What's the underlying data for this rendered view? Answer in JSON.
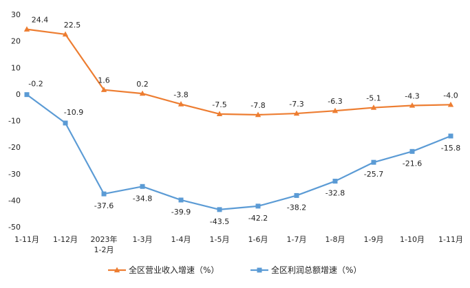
{
  "chart_data": {
    "type": "line",
    "categories": [
      "1-11月",
      "1-12月",
      "2023年\n1-2月",
      "1-3月",
      "1-4月",
      "1-5月",
      "1-6月",
      "1-7月",
      "1-8月",
      "1-9月",
      "1-10月",
      "1-11月"
    ],
    "series": [
      {
        "name": "全区营业收入增速（%）",
        "color": "#ED7D31",
        "marker": "triangle",
        "values": [
          24.4,
          22.5,
          1.6,
          0.2,
          -3.8,
          -7.5,
          -7.8,
          -7.3,
          -6.3,
          -5.1,
          -4.3,
          -4.0
        ],
        "labels": [
          "24.4",
          "22.5",
          "1.6",
          "0.2",
          "-3.8",
          "-7.5",
          "-7.8",
          "-7.3",
          "-6.3",
          "-5.1",
          "-4.3",
          "-4.0"
        ]
      },
      {
        "name": "全区利润总额增速（%）",
        "color": "#5B9BD5",
        "marker": "square",
        "values": [
          -0.2,
          -10.9,
          -37.6,
          -34.8,
          -39.9,
          -43.5,
          -42.2,
          -38.2,
          -32.8,
          -25.7,
          -21.6,
          -15.8
        ],
        "labels": [
          "-0.2",
          "-10.9",
          "-37.6",
          "-34.8",
          "-39.9",
          "-43.5",
          "-42.2",
          "-38.2",
          "-32.8",
          "-25.7",
          "-21.6",
          "-15.8"
        ]
      }
    ],
    "ylim": [
      -50,
      30
    ],
    "yticks": [
      -50,
      -40,
      -30,
      -20,
      -10,
      0,
      10,
      20,
      30
    ],
    "ytick_labels": [
      "-50",
      "-40",
      "-30",
      "-20",
      "-10",
      "0",
      "10",
      "20",
      "30"
    ],
    "grid": false,
    "legend": "bottom"
  }
}
